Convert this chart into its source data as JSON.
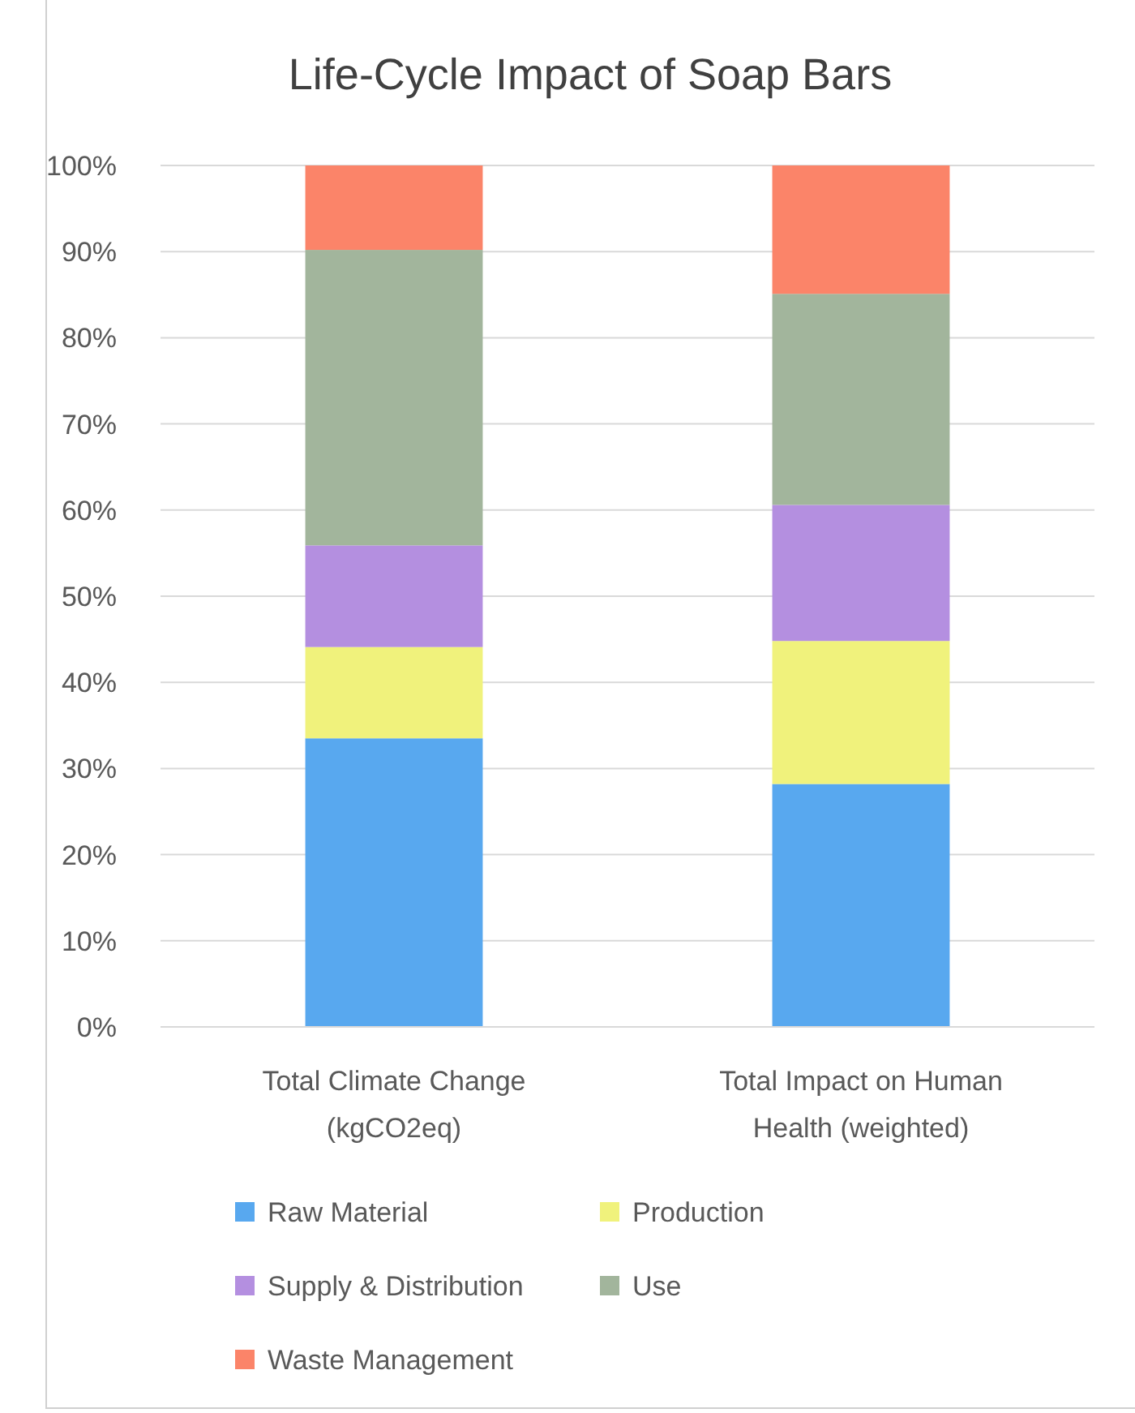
{
  "chart_data": {
    "type": "bar",
    "stacked": true,
    "title": "Life-Cycle Impact of Soap Bars",
    "categories": [
      "Total Climate Change (kgCO2eq)",
      "Total Impact on Human Health (weighted)"
    ],
    "series": [
      {
        "name": "Raw Material",
        "color": "#58a8ef",
        "values": [
          33.5,
          28.2
        ]
      },
      {
        "name": "Production",
        "color": "#f0f27c",
        "values": [
          10.6,
          16.6
        ]
      },
      {
        "name": "Supply & Distribution",
        "color": "#b48fe0",
        "values": [
          11.8,
          15.8
        ]
      },
      {
        "name": "Use",
        "color": "#a2b59c",
        "values": [
          34.3,
          24.5
        ]
      },
      {
        "name": "Waste Management",
        "color": "#fb8469",
        "values": [
          9.8,
          14.9
        ]
      }
    ],
    "ylim": [
      0,
      100
    ],
    "yticks": [
      {
        "value": 0,
        "label": "0%"
      },
      {
        "value": 10,
        "label": "10%"
      },
      {
        "value": 20,
        "label": "20%"
      },
      {
        "value": 30,
        "label": "30%"
      },
      {
        "value": 40,
        "label": "40%"
      },
      {
        "value": 50,
        "label": "50%"
      },
      {
        "value": 60,
        "label": "60%"
      },
      {
        "value": 70,
        "label": "70%"
      },
      {
        "value": 80,
        "label": "80%"
      },
      {
        "value": 90,
        "label": "90%"
      },
      {
        "value": 100,
        "label": "100%"
      }
    ],
    "grid": "y",
    "legend": "bottom"
  }
}
